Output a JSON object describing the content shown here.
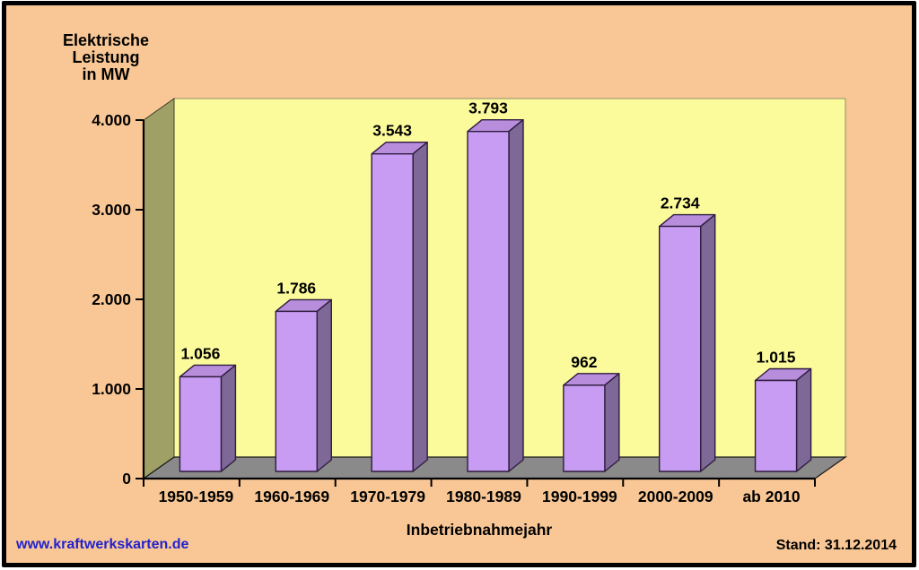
{
  "chart_data": {
    "type": "bar",
    "style": "3d-column",
    "ylabel": "Elektrische Leistung in MW",
    "ylabel_lines": [
      "Elektrische",
      "Leistung",
      "in MW"
    ],
    "xlabel": "Inbetriebnahmejahr",
    "categories": [
      "1950-1959",
      "1960-1969",
      "1970-1979",
      "1980-1989",
      "1990-1999",
      "2000-2009",
      "ab 2010"
    ],
    "values": [
      1056,
      1786,
      3543,
      3793,
      962,
      2734,
      1015
    ],
    "value_labels": [
      "1.056",
      "1.786",
      "3.543",
      "3.793",
      "962",
      "2.734",
      "1.015"
    ],
    "ylim": [
      0,
      4000
    ],
    "ytick_values": [
      0,
      1000,
      2000,
      3000,
      4000
    ],
    "ytick_labels": [
      "0",
      "1.000",
      "2.000",
      "3.000",
      "4.000"
    ],
    "grid": false,
    "legend": "none"
  },
  "footer": {
    "website": "www.kraftwerkskarten.de",
    "stand": "Stand: 31.12.2014"
  },
  "colors": {
    "background": "#F9C795",
    "border": "#000000",
    "wall_back": "#FCFB9B",
    "wall_back_outline": "#8F8F6F",
    "wall_side": "#9FA066",
    "wall_side_outline": "#3F3F28",
    "floor": "#8A8A8A",
    "floor_outline": "#1A1A1A",
    "bar_front": "#C79CF2",
    "bar_side": "#7E6897",
    "bar_top": "#B78DDC",
    "bar_outline": "#2E1C3E",
    "axis": "#000000",
    "link": "#2222CE",
    "text": "#000000"
  }
}
